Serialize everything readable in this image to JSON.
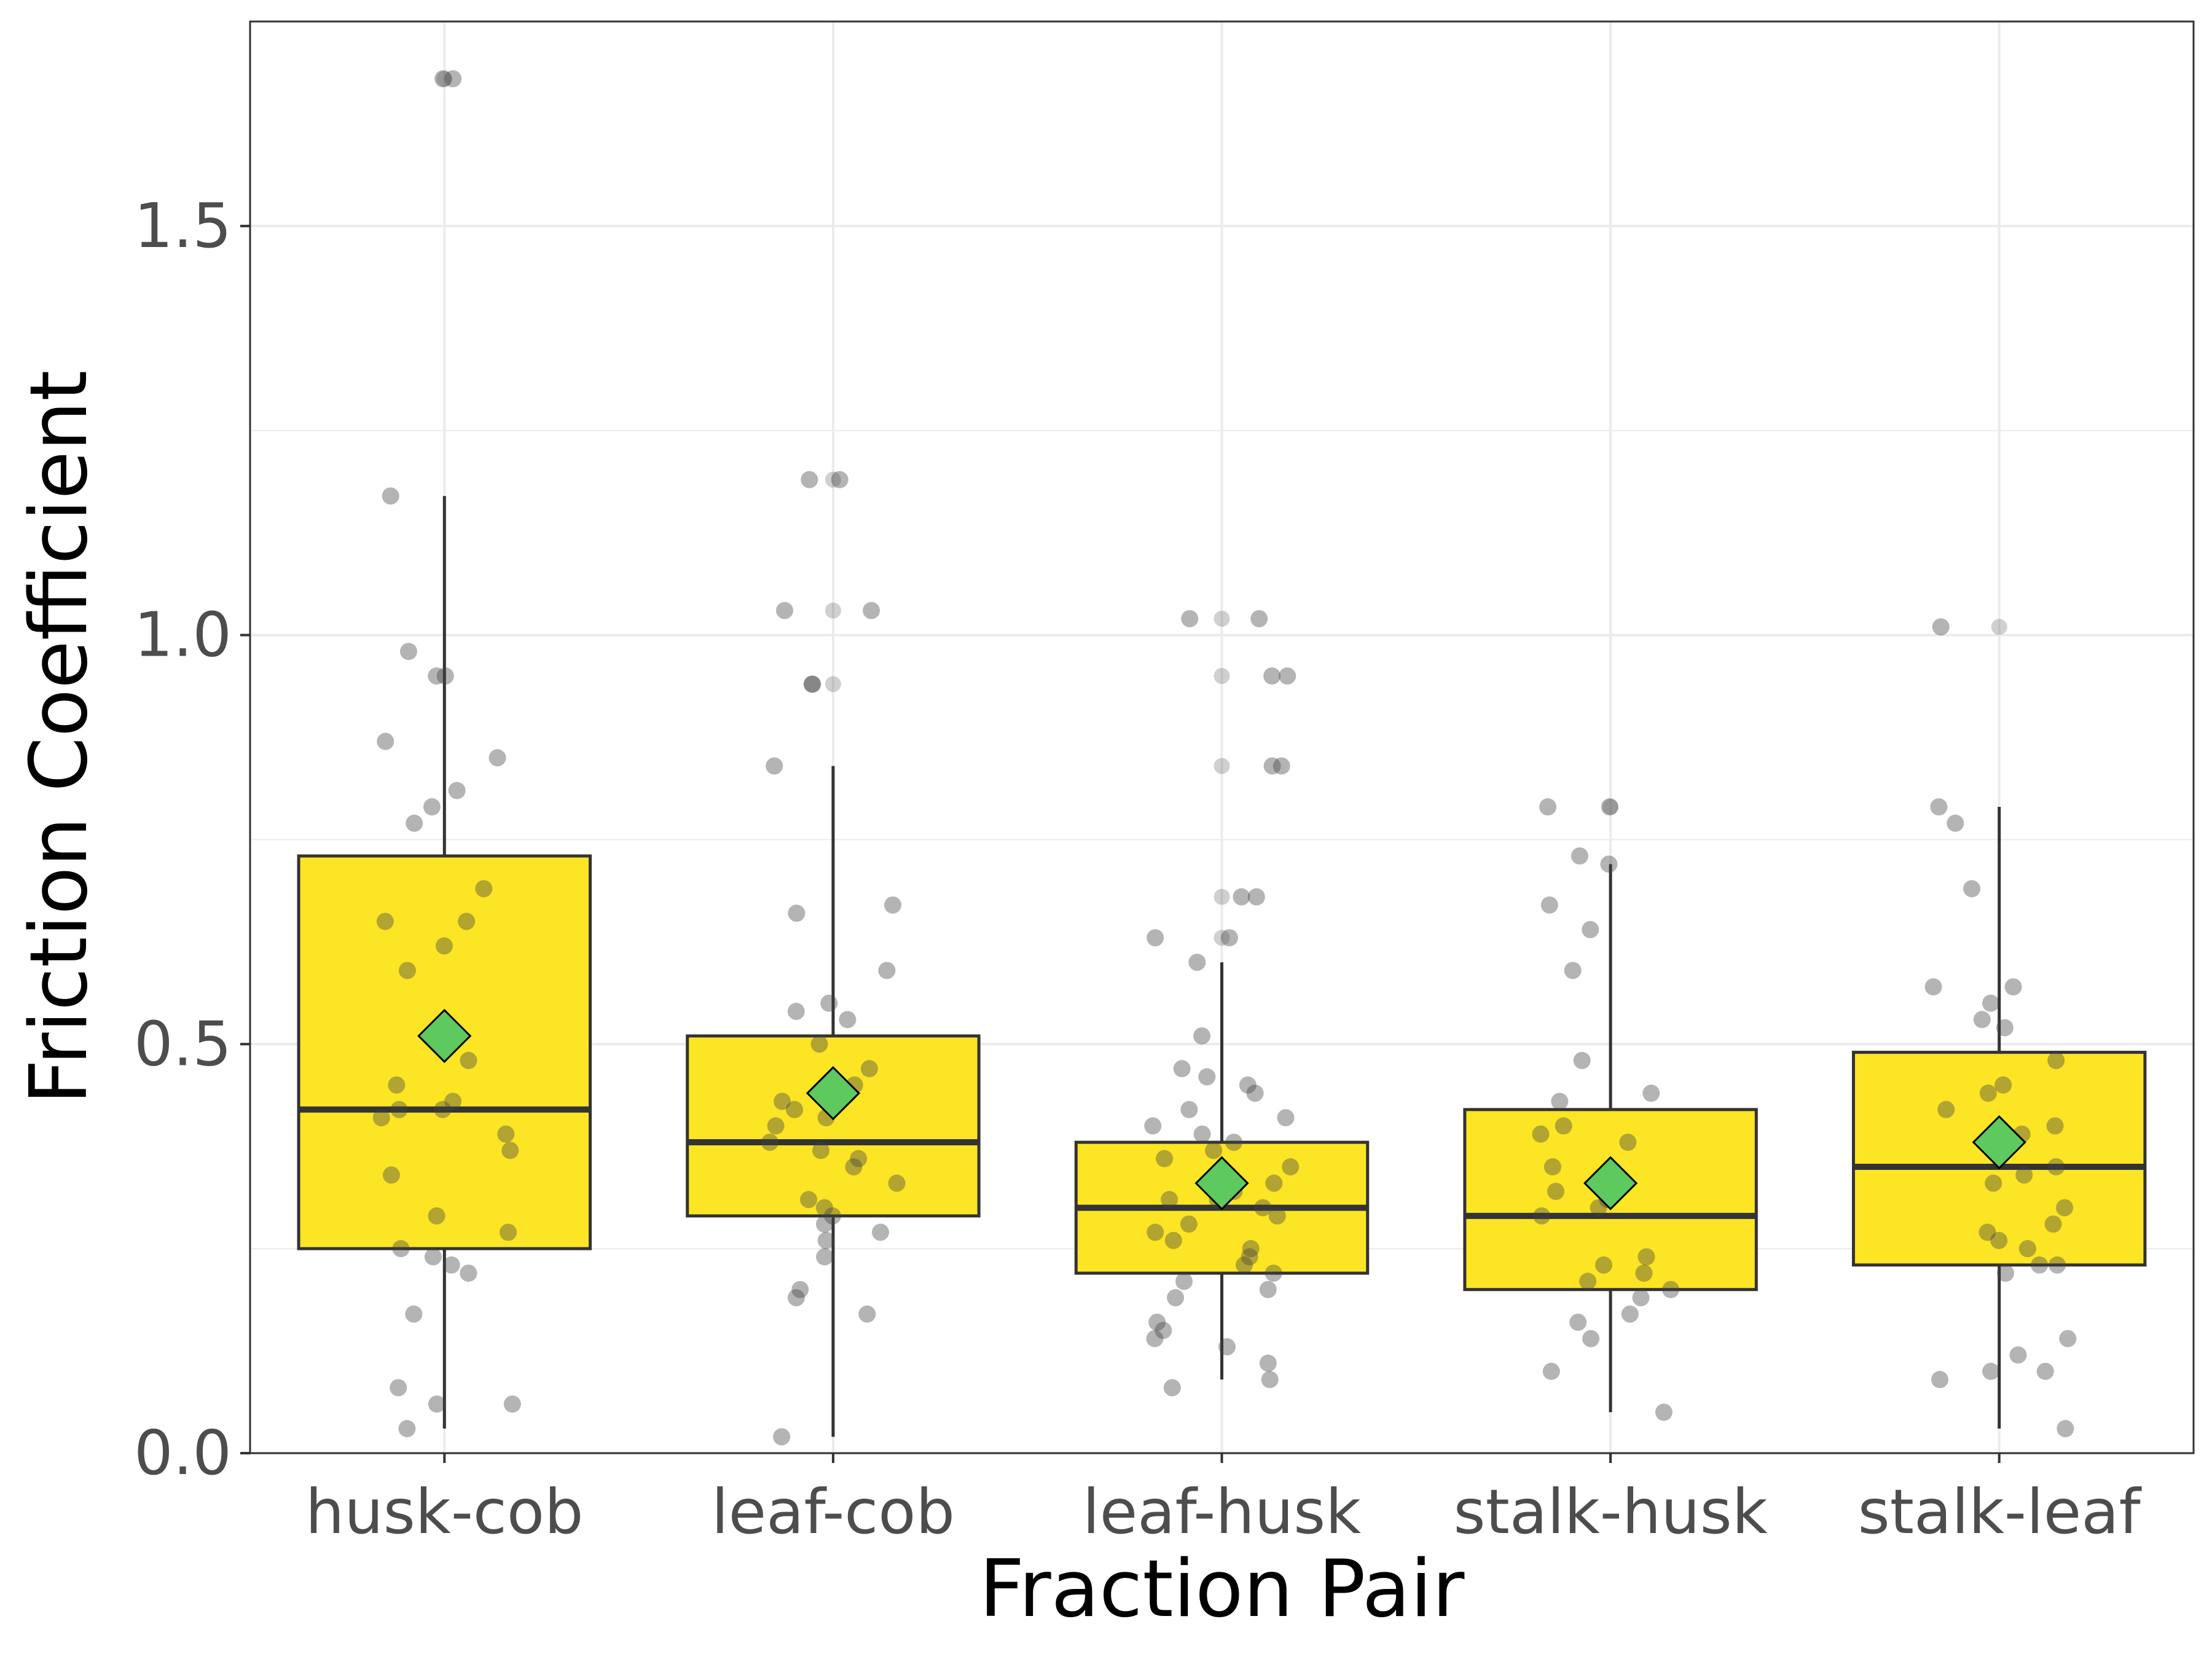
{
  "chart_data": {
    "type": "box",
    "title": "",
    "xlabel": "Fraction Pair",
    "ylabel": "Friction Coefficient",
    "ylim": [
      0,
      1.75
    ],
    "yticks": [
      0.0,
      0.5,
      1.0,
      1.5
    ],
    "ytick_labels": [
      "0.0",
      "0.5",
      "1.0",
      "1.5"
    ],
    "grid": true,
    "legend": "none",
    "colors": {
      "box_fill": "#fbe524",
      "box_border": "#333333",
      "mean_marker": "#5ec95e",
      "points": "#444444",
      "grid": "#ebebeb",
      "panel_border": "#333333"
    },
    "categories": [
      "husk-cob",
      "leaf-cob",
      "leaf-husk",
      "stalk-husk",
      "stalk-leaf"
    ],
    "boxes": [
      {
        "category": "husk-cob",
        "whisker_low": 0.03,
        "q1": 0.25,
        "median": 0.42,
        "q3": 0.73,
        "whisker_high": 1.17,
        "mean": 0.51,
        "outliers": [
          1.68
        ]
      },
      {
        "category": "leaf-cob",
        "whisker_low": 0.02,
        "q1": 0.29,
        "median": 0.38,
        "q3": 0.51,
        "whisker_high": 0.84,
        "mean": 0.44,
        "outliers": [
          0.94,
          1.03,
          1.19
        ]
      },
      {
        "category": "leaf-husk",
        "whisker_low": 0.09,
        "q1": 0.22,
        "median": 0.3,
        "q3": 0.38,
        "whisker_high": 0.6,
        "mean": 0.33,
        "outliers": [
          0.63,
          0.68,
          0.84,
          0.95,
          1.02
        ]
      },
      {
        "category": "stalk-husk",
        "whisker_low": 0.05,
        "q1": 0.2,
        "median": 0.29,
        "q3": 0.42,
        "whisker_high": 0.72,
        "mean": 0.33,
        "outliers": [
          0.79
        ]
      },
      {
        "category": "stalk-leaf",
        "whisker_low": 0.03,
        "q1": 0.23,
        "median": 0.35,
        "q3": 0.49,
        "whisker_high": 0.79,
        "mean": 0.38,
        "outliers": [
          1.01
        ]
      }
    ],
    "points": [
      {
        "category": "husk-cob",
        "values": [
          1.68,
          1.68,
          1.17,
          0.98,
          0.95,
          0.95,
          0.87,
          0.85,
          0.81,
          0.79,
          0.77,
          0.69,
          0.65,
          0.65,
          0.62,
          0.59,
          0.48,
          0.45,
          0.43,
          0.42,
          0.42,
          0.41,
          0.39,
          0.37,
          0.34,
          0.29,
          0.27,
          0.25,
          0.24,
          0.23,
          0.22,
          0.17,
          0.08,
          0.06,
          0.06,
          0.03
        ]
      },
      {
        "category": "leaf-cob",
        "values": [
          1.19,
          1.19,
          1.03,
          1.03,
          0.94,
          0.94,
          0.84,
          0.67,
          0.66,
          0.59,
          0.55,
          0.54,
          0.53,
          0.5,
          0.47,
          0.45,
          0.43,
          0.42,
          0.41,
          0.4,
          0.38,
          0.37,
          0.36,
          0.35,
          0.33,
          0.31,
          0.3,
          0.29,
          0.28,
          0.27,
          0.26,
          0.24,
          0.2,
          0.19,
          0.17,
          0.02
        ]
      },
      {
        "category": "leaf-husk",
        "values": [
          1.02,
          1.02,
          0.95,
          0.95,
          0.84,
          0.84,
          0.68,
          0.68,
          0.63,
          0.63,
          0.6,
          0.51,
          0.47,
          0.46,
          0.45,
          0.44,
          0.42,
          0.41,
          0.4,
          0.39,
          0.38,
          0.37,
          0.36,
          0.35,
          0.34,
          0.33,
          0.32,
          0.31,
          0.31,
          0.3,
          0.29,
          0.28,
          0.27,
          0.26,
          0.25,
          0.24,
          0.23,
          0.22,
          0.21,
          0.2,
          0.19,
          0.16,
          0.15,
          0.14,
          0.13,
          0.11,
          0.09,
          0.08
        ]
      },
      {
        "category": "stalk-husk",
        "values": [
          0.79,
          0.79,
          0.73,
          0.72,
          0.67,
          0.64,
          0.59,
          0.48,
          0.44,
          0.43,
          0.4,
          0.39,
          0.38,
          0.35,
          0.33,
          0.32,
          0.31,
          0.3,
          0.29,
          0.24,
          0.23,
          0.22,
          0.21,
          0.2,
          0.19,
          0.17,
          0.16,
          0.14,
          0.1,
          0.05
        ]
      },
      {
        "category": "stalk-leaf",
        "values": [
          1.01,
          0.79,
          0.77,
          0.69,
          0.57,
          0.57,
          0.55,
          0.53,
          0.52,
          0.48,
          0.45,
          0.44,
          0.42,
          0.4,
          0.39,
          0.37,
          0.35,
          0.34,
          0.33,
          0.3,
          0.28,
          0.27,
          0.26,
          0.25,
          0.23,
          0.23,
          0.22,
          0.14,
          0.12,
          0.1,
          0.1,
          0.09,
          0.03
        ]
      }
    ]
  }
}
